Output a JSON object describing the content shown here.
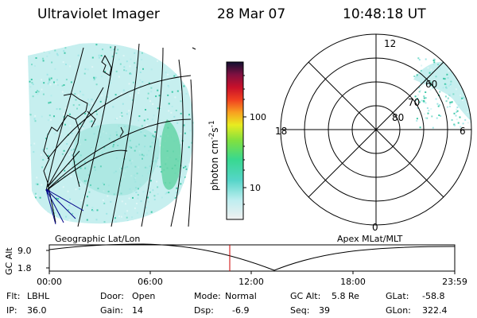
{
  "header": {
    "instrument": "Ultraviolet Imager",
    "date": "28 Mar 07",
    "time": "10:48:18 UT"
  },
  "colorbar": {
    "unit_label": "photon cm",
    "unit_sup1": "-2",
    "unit_mid": "s",
    "unit_sup2": "-1",
    "ticks": [
      "100",
      "10"
    ]
  },
  "polar_plot": {
    "clock_labels": {
      "top": "12",
      "left": "18",
      "right": "6",
      "bottom": "0"
    },
    "lat_labels": [
      "80",
      "70",
      "60"
    ]
  },
  "panel_labels": {
    "left": "Geographic Lat/Lon",
    "right": "Apex MLat/MLT"
  },
  "altitude_plot": {
    "axis_label": "GC Alt",
    "y_ticks": [
      "9.0",
      "1.8"
    ],
    "x_ticks": [
      "00:00",
      "06:00",
      "12:00",
      "18:00",
      "23:59"
    ]
  },
  "info": {
    "filter_label": "Flt:",
    "filter_value": "LBHL",
    "ip_label": "IP:",
    "ip_value": "36.0",
    "door_label": "Door:",
    "door_value": "Open",
    "gain_label": "Gain:",
    "gain_value": "14",
    "mode_label": "Mode:",
    "mode_value": "Normal",
    "dsp_label": "Dsp:",
    "dsp_value": "-6.9",
    "gcalt_label": "GC Alt:",
    "gcalt_value": "5.8 Re",
    "seq_label": "Seq:",
    "seq_value": "39",
    "glat_label": "GLat:",
    "glat_value": "-58.8",
    "glon_label": "GLon:",
    "glon_value": "322.4"
  },
  "colors": {
    "marker": "#cc0000",
    "glow": "#b4ecec",
    "glow_bright": "#40c8a8"
  }
}
